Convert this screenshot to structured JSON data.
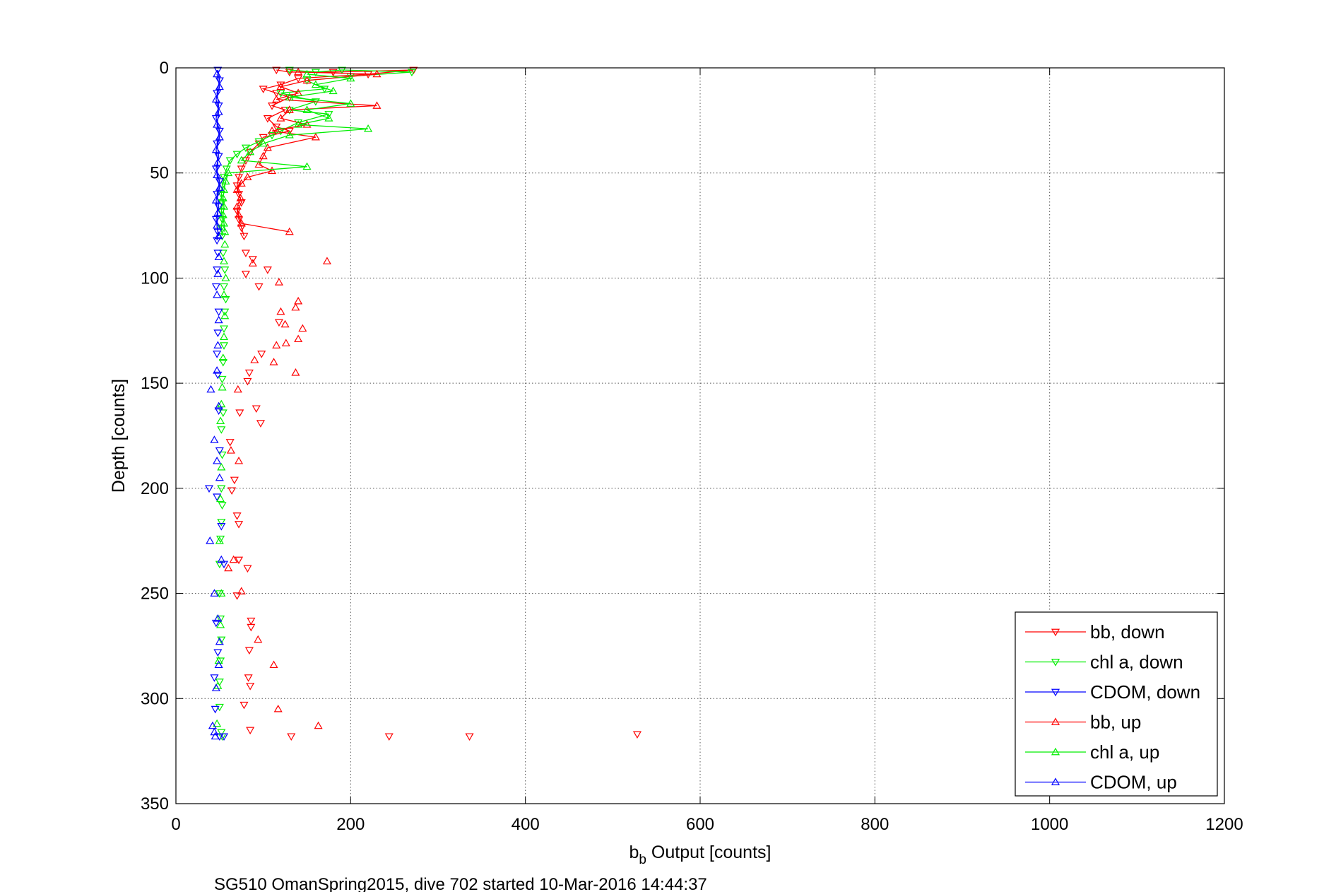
{
  "chart_data": {
    "type": "line",
    "title": "",
    "xlabel": {
      "base": "b",
      "sub": "b",
      "rest": " Output [counts]"
    },
    "ylabel": "Depth [counts]",
    "caption": "SG510 OmanSpring2015, dive 702 started 10-Mar-2016 14:44:37",
    "xlim": [
      0,
      1200
    ],
    "ylim": [
      0,
      350
    ],
    "y_reversed": true,
    "grid": true,
    "legend_position": "bottom-right",
    "x_ticks": [
      0,
      200,
      400,
      600,
      800,
      1000,
      1200
    ],
    "y_ticks": [
      0,
      50,
      100,
      150,
      200,
      250,
      300,
      350
    ],
    "colors": {
      "bb": "#ff0000",
      "chl": "#00ee00",
      "cdom": "#0000ff"
    },
    "series": [
      {
        "name": "bb, down",
        "color": "#ff0000",
        "marker": "triangle-down",
        "connected": true,
        "points": [
          [
            115,
            1
          ],
          [
            130,
            2
          ],
          [
            180,
            2
          ],
          [
            272,
            1
          ],
          [
            220,
            3
          ],
          [
            140,
            5
          ],
          [
            120,
            8
          ],
          [
            100,
            10
          ],
          [
            115,
            12
          ],
          [
            130,
            14
          ],
          [
            110,
            18
          ],
          [
            125,
            20
          ],
          [
            105,
            24
          ],
          [
            115,
            28
          ],
          [
            130,
            30
          ],
          [
            100,
            33
          ],
          [
            95,
            36
          ],
          [
            85,
            40
          ],
          [
            80,
            44
          ],
          [
            75,
            48
          ],
          [
            72,
            52
          ],
          [
            70,
            56
          ],
          [
            72,
            60
          ],
          [
            75,
            64
          ],
          [
            70,
            68
          ],
          [
            72,
            72
          ],
          [
            75,
            76
          ],
          [
            78,
            80
          ]
        ]
      },
      {
        "name": "bb, down",
        "color": "#ff0000",
        "marker": "triangle-down",
        "connected": false,
        "points": [
          [
            80,
            88
          ],
          [
            88,
            91
          ],
          [
            105,
            96
          ],
          [
            80,
            98
          ],
          [
            95,
            104
          ],
          [
            118,
            121
          ],
          [
            98,
            136
          ],
          [
            84,
            145
          ],
          [
            82,
            149
          ],
          [
            92,
            162
          ],
          [
            97,
            169
          ],
          [
            73,
            164
          ],
          [
            62,
            178
          ],
          [
            67,
            196
          ],
          [
            64,
            201
          ],
          [
            70,
            213
          ],
          [
            72,
            217
          ],
          [
            72,
            234
          ],
          [
            82,
            238
          ],
          [
            70,
            251
          ],
          [
            86,
            263
          ],
          [
            86,
            266
          ],
          [
            84,
            277
          ],
          [
            83,
            290
          ],
          [
            85,
            294
          ],
          [
            78,
            303
          ],
          [
            85,
            315
          ],
          [
            132,
            318
          ],
          [
            244,
            318
          ],
          [
            336,
            318
          ],
          [
            528,
            317
          ]
        ]
      },
      {
        "name": "chl a, down",
        "color": "#00ee00",
        "marker": "triangle-down",
        "connected": true,
        "points": [
          [
            130,
            1
          ],
          [
            160,
            2
          ],
          [
            190,
            1
          ],
          [
            270,
            2
          ],
          [
            200,
            4
          ],
          [
            150,
            6
          ],
          [
            170,
            10
          ],
          [
            120,
            12
          ],
          [
            160,
            16
          ],
          [
            130,
            20
          ],
          [
            175,
            22
          ],
          [
            140,
            26
          ],
          [
            120,
            30
          ],
          [
            110,
            32
          ],
          [
            95,
            35
          ],
          [
            80,
            38
          ],
          [
            70,
            41
          ],
          [
            62,
            44
          ],
          [
            58,
            48
          ],
          [
            55,
            52
          ],
          [
            53,
            56
          ],
          [
            52,
            60
          ],
          [
            53,
            64
          ],
          [
            52,
            68
          ],
          [
            53,
            72
          ],
          [
            52,
            76
          ],
          [
            53,
            80
          ]
        ]
      },
      {
        "name": "chl a, down",
        "color": "#00ee00",
        "marker": "triangle-down",
        "connected": false,
        "points": [
          [
            54,
            88
          ],
          [
            56,
            96
          ],
          [
            55,
            104
          ],
          [
            57,
            110
          ],
          [
            56,
            116
          ],
          [
            55,
            124
          ],
          [
            55,
            132
          ],
          [
            54,
            140
          ],
          [
            53,
            148
          ],
          [
            54,
            164
          ],
          [
            52,
            172
          ],
          [
            53,
            184
          ],
          [
            52,
            200
          ],
          [
            53,
            208
          ],
          [
            52,
            216
          ],
          [
            51,
            224
          ],
          [
            50,
            236
          ],
          [
            50,
            250
          ],
          [
            51,
            262
          ],
          [
            52,
            272
          ],
          [
            51,
            282
          ],
          [
            50,
            292
          ],
          [
            50,
            304
          ],
          [
            52,
            316
          ],
          [
            53,
            318
          ]
        ]
      },
      {
        "name": "CDOM, down",
        "color": "#0000ff",
        "marker": "triangle-down",
        "connected": true,
        "points": [
          [
            48,
            1
          ],
          [
            50,
            6
          ],
          [
            47,
            12
          ],
          [
            49,
            18
          ],
          [
            46,
            24
          ],
          [
            50,
            30
          ],
          [
            47,
            36
          ],
          [
            49,
            42
          ],
          [
            46,
            48
          ],
          [
            50,
            54
          ],
          [
            47,
            60
          ],
          [
            49,
            66
          ],
          [
            46,
            72
          ],
          [
            48,
            78
          ],
          [
            47,
            82
          ]
        ]
      },
      {
        "name": "CDOM, down",
        "color": "#0000ff",
        "marker": "triangle-down",
        "connected": false,
        "points": [
          [
            48,
            88
          ],
          [
            47,
            96
          ],
          [
            46,
            104
          ],
          [
            49,
            116
          ],
          [
            48,
            126
          ],
          [
            47,
            136
          ],
          [
            48,
            146
          ],
          [
            49,
            163
          ],
          [
            50,
            182
          ],
          [
            38,
            200
          ],
          [
            47,
            204
          ],
          [
            52,
            218
          ],
          [
            55,
            236
          ],
          [
            46,
            264
          ],
          [
            48,
            278
          ],
          [
            44,
            290
          ],
          [
            45,
            305
          ],
          [
            50,
            318
          ],
          [
            55,
            318
          ]
        ]
      },
      {
        "name": "bb, up",
        "color": "#ff0000",
        "marker": "triangle-up",
        "connected": true,
        "points": [
          [
            140,
            2
          ],
          [
            230,
            3
          ],
          [
            150,
            6
          ],
          [
            120,
            9
          ],
          [
            140,
            12
          ],
          [
            115,
            15
          ],
          [
            230,
            18
          ],
          [
            130,
            20
          ],
          [
            120,
            24
          ],
          [
            150,
            27
          ],
          [
            110,
            30
          ],
          [
            160,
            33
          ],
          [
            105,
            38
          ],
          [
            100,
            42
          ],
          [
            95,
            46
          ],
          [
            110,
            49
          ],
          [
            82,
            52
          ],
          [
            75,
            55
          ],
          [
            70,
            58
          ],
          [
            74,
            62
          ],
          [
            70,
            66
          ],
          [
            72,
            70
          ],
          [
            75,
            74
          ],
          [
            130,
            78
          ]
        ]
      },
      {
        "name": "bb, up",
        "color": "#ff0000",
        "marker": "triangle-up",
        "connected": false,
        "points": [
          [
            88,
            93
          ],
          [
            173,
            92
          ],
          [
            118,
            102
          ],
          [
            140,
            111
          ],
          [
            137,
            114
          ],
          [
            120,
            116
          ],
          [
            125,
            122
          ],
          [
            145,
            124
          ],
          [
            140,
            129
          ],
          [
            126,
            131
          ],
          [
            115,
            132
          ],
          [
            90,
            139
          ],
          [
            112,
            140
          ],
          [
            137,
            145
          ],
          [
            71,
            153
          ],
          [
            63,
            182
          ],
          [
            72,
            187
          ],
          [
            60,
            238
          ],
          [
            66,
            234
          ],
          [
            75,
            249
          ],
          [
            94,
            272
          ],
          [
            112,
            284
          ],
          [
            117,
            305
          ],
          [
            163,
            313
          ]
        ]
      },
      {
        "name": "chl a, up",
        "color": "#00ee00",
        "marker": "triangle-up",
        "connected": true,
        "points": [
          [
            150,
            3
          ],
          [
            200,
            5
          ],
          [
            160,
            8
          ],
          [
            180,
            11
          ],
          [
            130,
            14
          ],
          [
            200,
            17
          ],
          [
            150,
            20
          ],
          [
            175,
            24
          ],
          [
            140,
            27
          ],
          [
            220,
            29
          ],
          [
            130,
            32
          ],
          [
            100,
            36
          ],
          [
            85,
            40
          ],
          [
            75,
            44
          ],
          [
            150,
            47
          ],
          [
            60,
            50
          ],
          [
            57,
            54
          ],
          [
            55,
            58
          ],
          [
            54,
            62
          ],
          [
            55,
            66
          ],
          [
            54,
            70
          ],
          [
            55,
            74
          ],
          [
            56,
            78
          ]
        ]
      },
      {
        "name": "chl a, up",
        "color": "#00ee00",
        "marker": "triangle-up",
        "connected": false,
        "points": [
          [
            56,
            84
          ],
          [
            55,
            92
          ],
          [
            57,
            100
          ],
          [
            55,
            108
          ],
          [
            56,
            118
          ],
          [
            55,
            128
          ],
          [
            54,
            138
          ],
          [
            53,
            152
          ],
          [
            52,
            160
          ],
          [
            51,
            168
          ],
          [
            52,
            190
          ],
          [
            51,
            205
          ],
          [
            50,
            225
          ],
          [
            52,
            250
          ],
          [
            51,
            265
          ],
          [
            49,
            282
          ],
          [
            48,
            294
          ],
          [
            47,
            312
          ]
        ]
      },
      {
        "name": "CDOM, up",
        "color": "#0000ff",
        "marker": "triangle-up",
        "connected": true,
        "points": [
          [
            47,
            3
          ],
          [
            50,
            9
          ],
          [
            46,
            15
          ],
          [
            49,
            21
          ],
          [
            47,
            27
          ],
          [
            50,
            33
          ],
          [
            46,
            39
          ],
          [
            48,
            45
          ],
          [
            47,
            51
          ],
          [
            50,
            57
          ],
          [
            46,
            63
          ],
          [
            48,
            69
          ],
          [
            47,
            75
          ],
          [
            49,
            80
          ]
        ]
      },
      {
        "name": "CDOM, up",
        "color": "#0000ff",
        "marker": "triangle-up",
        "connected": false,
        "points": [
          [
            49,
            90
          ],
          [
            48,
            98
          ],
          [
            47,
            108
          ],
          [
            49,
            120
          ],
          [
            48,
            132
          ],
          [
            47,
            144
          ],
          [
            40,
            153
          ],
          [
            49,
            161
          ],
          [
            44,
            177
          ],
          [
            47,
            187
          ],
          [
            50,
            195
          ],
          [
            39,
            225
          ],
          [
            52,
            234
          ],
          [
            44,
            250
          ],
          [
            48,
            262
          ],
          [
            50,
            273
          ],
          [
            49,
            284
          ],
          [
            46,
            295
          ],
          [
            42,
            313
          ],
          [
            44,
            316
          ],
          [
            45,
            318
          ]
        ]
      }
    ],
    "legend": [
      {
        "label": "bb, down",
        "color": "#ff0000",
        "marker": "triangle-down"
      },
      {
        "label": "chl a, down",
        "color": "#00ee00",
        "marker": "triangle-down"
      },
      {
        "label": "CDOM, down",
        "color": "#0000ff",
        "marker": "triangle-down"
      },
      {
        "label": "bb, up",
        "color": "#ff0000",
        "marker": "triangle-up"
      },
      {
        "label": "chl a, up",
        "color": "#00ee00",
        "marker": "triangle-up"
      },
      {
        "label": "CDOM, up",
        "color": "#0000ff",
        "marker": "triangle-up"
      }
    ]
  }
}
